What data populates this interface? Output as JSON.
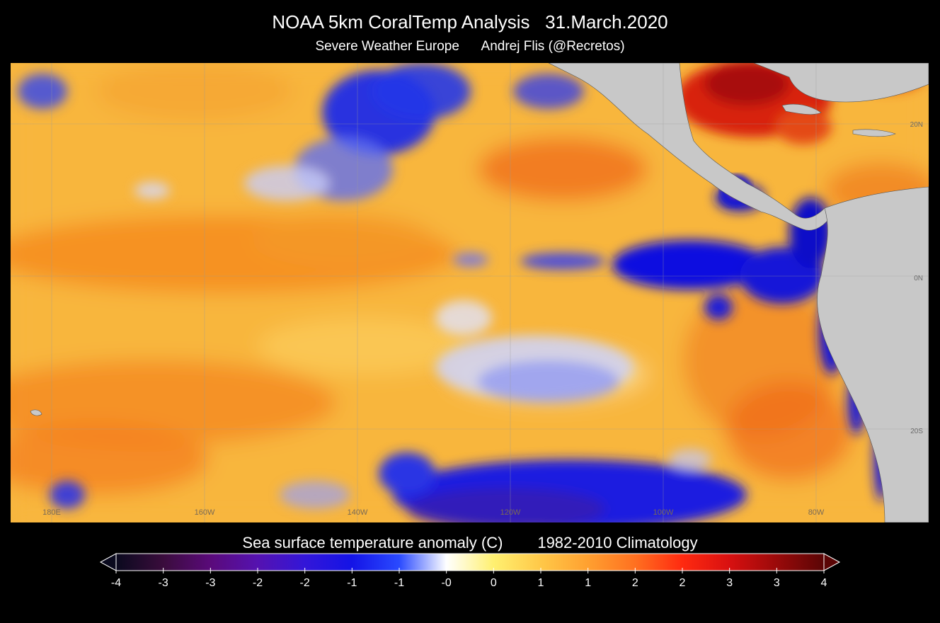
{
  "title": "NOAA 5km CoralTemp Analysis   31.March.2020",
  "subtitle": "Severe Weather Europe      Andrej Flis (@Recretos)",
  "map": {
    "longitude_labels": [
      "180E",
      "160W",
      "140W",
      "120W",
      "100W",
      "80W"
    ],
    "latitude_labels": [
      "20N",
      "0N",
      "20S"
    ],
    "land_color": "#c8c8c8",
    "ocean_base_color": "#f7b640"
  },
  "colorbar": {
    "title": "Sea surface temperature anomaly (C)        1982-2010 Climatology",
    "tick_labels": [
      "-4",
      "-3",
      "-3",
      "-2",
      "-2",
      "-1",
      "-1",
      "-0",
      "0",
      "1",
      "1",
      "2",
      "2",
      "3",
      "3",
      "4"
    ],
    "colors": [
      "#0a0a1e",
      "#3a0c3c",
      "#5a0a7a",
      "#5512b0",
      "#3316d8",
      "#1414e6",
      "#2a4aff",
      "#ffffff",
      "#fff070",
      "#ffc848",
      "#ffa030",
      "#ff7020",
      "#ff2a10",
      "#d81010",
      "#9a0a0a",
      "#5a0505"
    ]
  }
}
